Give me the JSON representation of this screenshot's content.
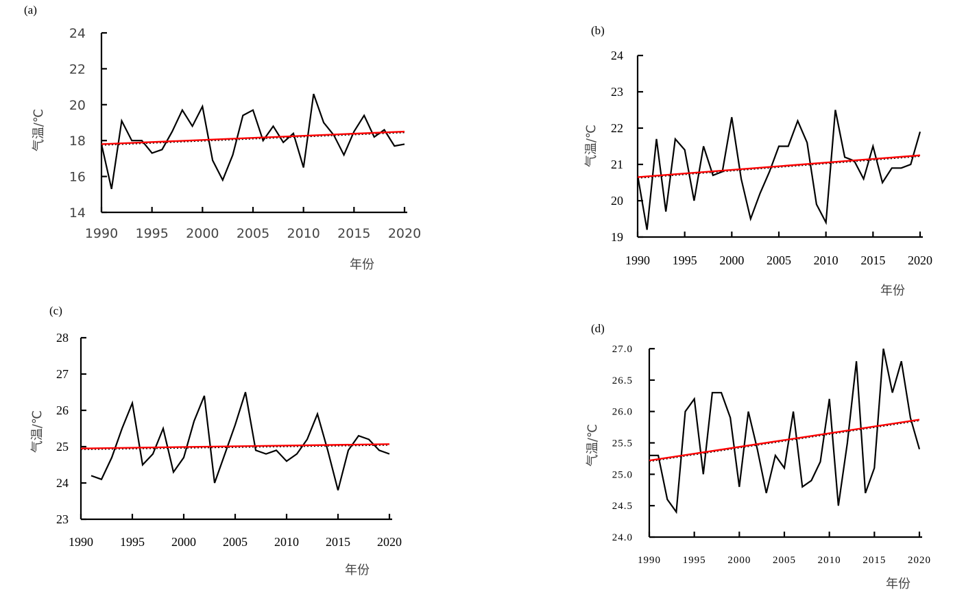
{
  "chart_data": [
    {
      "panel": "(a)",
      "type": "line",
      "xlabel": "年份",
      "ylabel": "气温/℃",
      "ylim": [
        14,
        24
      ],
      "yticks": [
        "14",
        "16",
        "18",
        "20",
        "22",
        "24"
      ],
      "xticks": [
        "1990",
        "1995",
        "2000",
        "2005",
        "2010",
        "2015",
        "2020"
      ],
      "xlim": [
        1990,
        2020
      ],
      "x": [
        1990,
        1991,
        1992,
        1993,
        1994,
        1995,
        1996,
        1997,
        1998,
        1999,
        2000,
        2001,
        2002,
        2003,
        2004,
        2005,
        2006,
        2007,
        2008,
        2009,
        2010,
        2011,
        2012,
        2013,
        2014,
        2015,
        2016,
        2017,
        2018,
        2019,
        2020
      ],
      "values": [
        17.8,
        15.3,
        19.1,
        18.0,
        18.0,
        17.3,
        17.5,
        18.5,
        19.7,
        18.8,
        19.9,
        16.9,
        15.8,
        17.2,
        19.4,
        19.7,
        18.0,
        18.8,
        17.9,
        18.4,
        16.5,
        20.6,
        19.0,
        18.3,
        17.2,
        18.5,
        19.4,
        18.2,
        18.6,
        17.7,
        17.8
      ],
      "trend": [
        17.8,
        18.5
      ]
    },
    {
      "panel": "(b)",
      "type": "line",
      "xlabel": "年份",
      "ylabel": "气温/℃",
      "ylim": [
        19,
        24
      ],
      "yticks": [
        "19",
        "20",
        "21",
        "22",
        "23",
        "24"
      ],
      "xticks": [
        "1990",
        "1995",
        "2000",
        "2005",
        "2010",
        "2015",
        "2020"
      ],
      "xlim": [
        1990,
        2020
      ],
      "x": [
        1990,
        1991,
        1992,
        1993,
        1994,
        1995,
        1996,
        1997,
        1998,
        1999,
        2000,
        2001,
        2002,
        2003,
        2004,
        2005,
        2006,
        2007,
        2008,
        2009,
        2010,
        2011,
        2012,
        2013,
        2014,
        2015,
        2016,
        2017,
        2018,
        2019,
        2020
      ],
      "values": [
        20.7,
        19.2,
        21.7,
        19.7,
        21.7,
        21.4,
        20.0,
        21.5,
        20.7,
        20.8,
        22.3,
        20.6,
        19.5,
        20.2,
        20.8,
        21.5,
        21.5,
        22.2,
        21.6,
        19.9,
        19.4,
        22.5,
        21.2,
        21.1,
        20.6,
        21.5,
        20.5,
        20.9,
        20.9,
        21.0,
        21.9
      ],
      "trend": [
        20.65,
        21.25
      ]
    },
    {
      "panel": "(c)",
      "type": "line",
      "xlabel": "年份",
      "ylabel": "气温/℃",
      "ylim": [
        23,
        28
      ],
      "yticks": [
        "23",
        "24",
        "25",
        "26",
        "27",
        "28"
      ],
      "xticks": [
        "1990",
        "1995",
        "2000",
        "2005",
        "2010",
        "2015",
        "2020"
      ],
      "xlim": [
        1990,
        2020
      ],
      "x": [
        1991,
        1992,
        1993,
        1994,
        1995,
        1996,
        1997,
        1998,
        1999,
        2000,
        2001,
        2002,
        2003,
        2004,
        2005,
        2006,
        2007,
        2008,
        2009,
        2010,
        2011,
        2012,
        2013,
        2014,
        2015,
        2016,
        2017,
        2018,
        2019,
        2020
      ],
      "values": [
        24.2,
        24.1,
        24.7,
        25.5,
        26.2,
        24.5,
        24.8,
        25.5,
        24.3,
        24.7,
        25.7,
        26.4,
        24.0,
        24.8,
        25.6,
        26.5,
        24.9,
        24.8,
        24.9,
        24.6,
        24.8,
        25.2,
        25.9,
        24.9,
        23.8,
        24.9,
        25.3,
        25.2,
        24.9,
        24.8
      ],
      "trend": [
        24.95,
        25.07
      ]
    },
    {
      "panel": "(d)",
      "type": "line",
      "xlabel": "年份",
      "ylabel": "气温/℃",
      "ylim": [
        24.0,
        27.0
      ],
      "yticks": [
        "24.0",
        "24.5",
        "25.0",
        "25.5",
        "26.0",
        "26.5",
        "27.0"
      ],
      "xticks": [
        "1990",
        "1995",
        "2000",
        "2005",
        "2010",
        "2015",
        "2020"
      ],
      "xlim": [
        1990,
        2020
      ],
      "x": [
        1990,
        1991,
        1992,
        1993,
        1994,
        1995,
        1996,
        1997,
        1998,
        1999,
        2000,
        2001,
        2002,
        2003,
        2004,
        2005,
        2006,
        2007,
        2008,
        2009,
        2010,
        2011,
        2012,
        2013,
        2014,
        2015,
        2016,
        2017,
        2018,
        2019,
        2020
      ],
      "values": [
        25.3,
        25.3,
        24.6,
        24.4,
        26.0,
        26.2,
        25.0,
        26.3,
        26.3,
        25.9,
        24.8,
        26.0,
        25.4,
        24.7,
        25.3,
        25.1,
        26.0,
        24.8,
        24.9,
        25.2,
        26.2,
        24.5,
        25.5,
        26.8,
        24.7,
        25.1,
        27.0,
        26.3,
        26.8,
        25.9,
        25.4
      ],
      "trend": [
        25.22,
        25.87
      ]
    }
  ]
}
